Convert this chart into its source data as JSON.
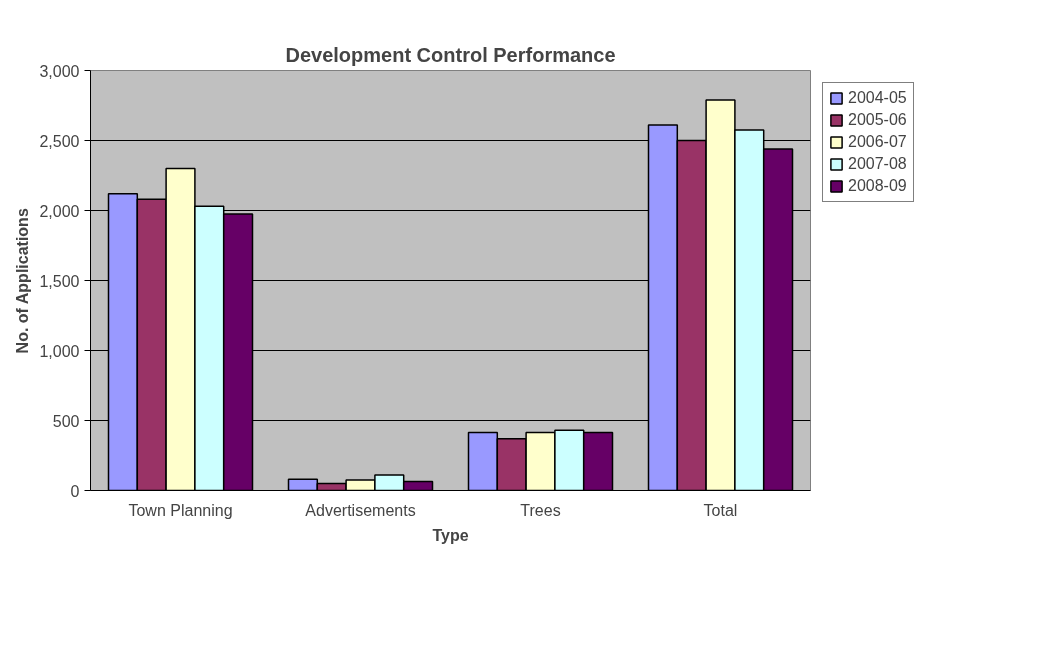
{
  "chart_data": {
    "type": "bar",
    "title": "Development Control Performance",
    "xlabel": "Type",
    "ylabel": "No. of Applications",
    "categories": [
      "Town Planning",
      "Advertisements",
      "Trees",
      "Total"
    ],
    "series": [
      {
        "name": "2004-05",
        "color": "#9999ff",
        "values": [
          2120,
          80,
          415,
          2610
        ]
      },
      {
        "name": "2005-06",
        "color": "#993366",
        "values": [
          2080,
          50,
          370,
          2500
        ]
      },
      {
        "name": "2006-07",
        "color": "#ffffcc",
        "values": [
          2300,
          75,
          415,
          2790
        ]
      },
      {
        "name": "2007-08",
        "color": "#ccffff",
        "values": [
          2030,
          110,
          430,
          2575
        ]
      },
      {
        "name": "2008-09",
        "color": "#660066",
        "values": [
          1975,
          65,
          415,
          2440
        ]
      }
    ],
    "ylim": [
      0,
      3000
    ],
    "yticks": [
      0,
      {
        "value": 500,
        "label": "500"
      },
      {
        "value": 1000,
        "label": "1,000"
      },
      {
        "value": 1500,
        "label": "1,500"
      },
      {
        "value": 2000,
        "label": "2,000"
      },
      {
        "value": 2500,
        "label": "2,500"
      },
      {
        "value": 3000,
        "label": "3,000"
      }
    ],
    "grid": "y",
    "legend": "right"
  }
}
